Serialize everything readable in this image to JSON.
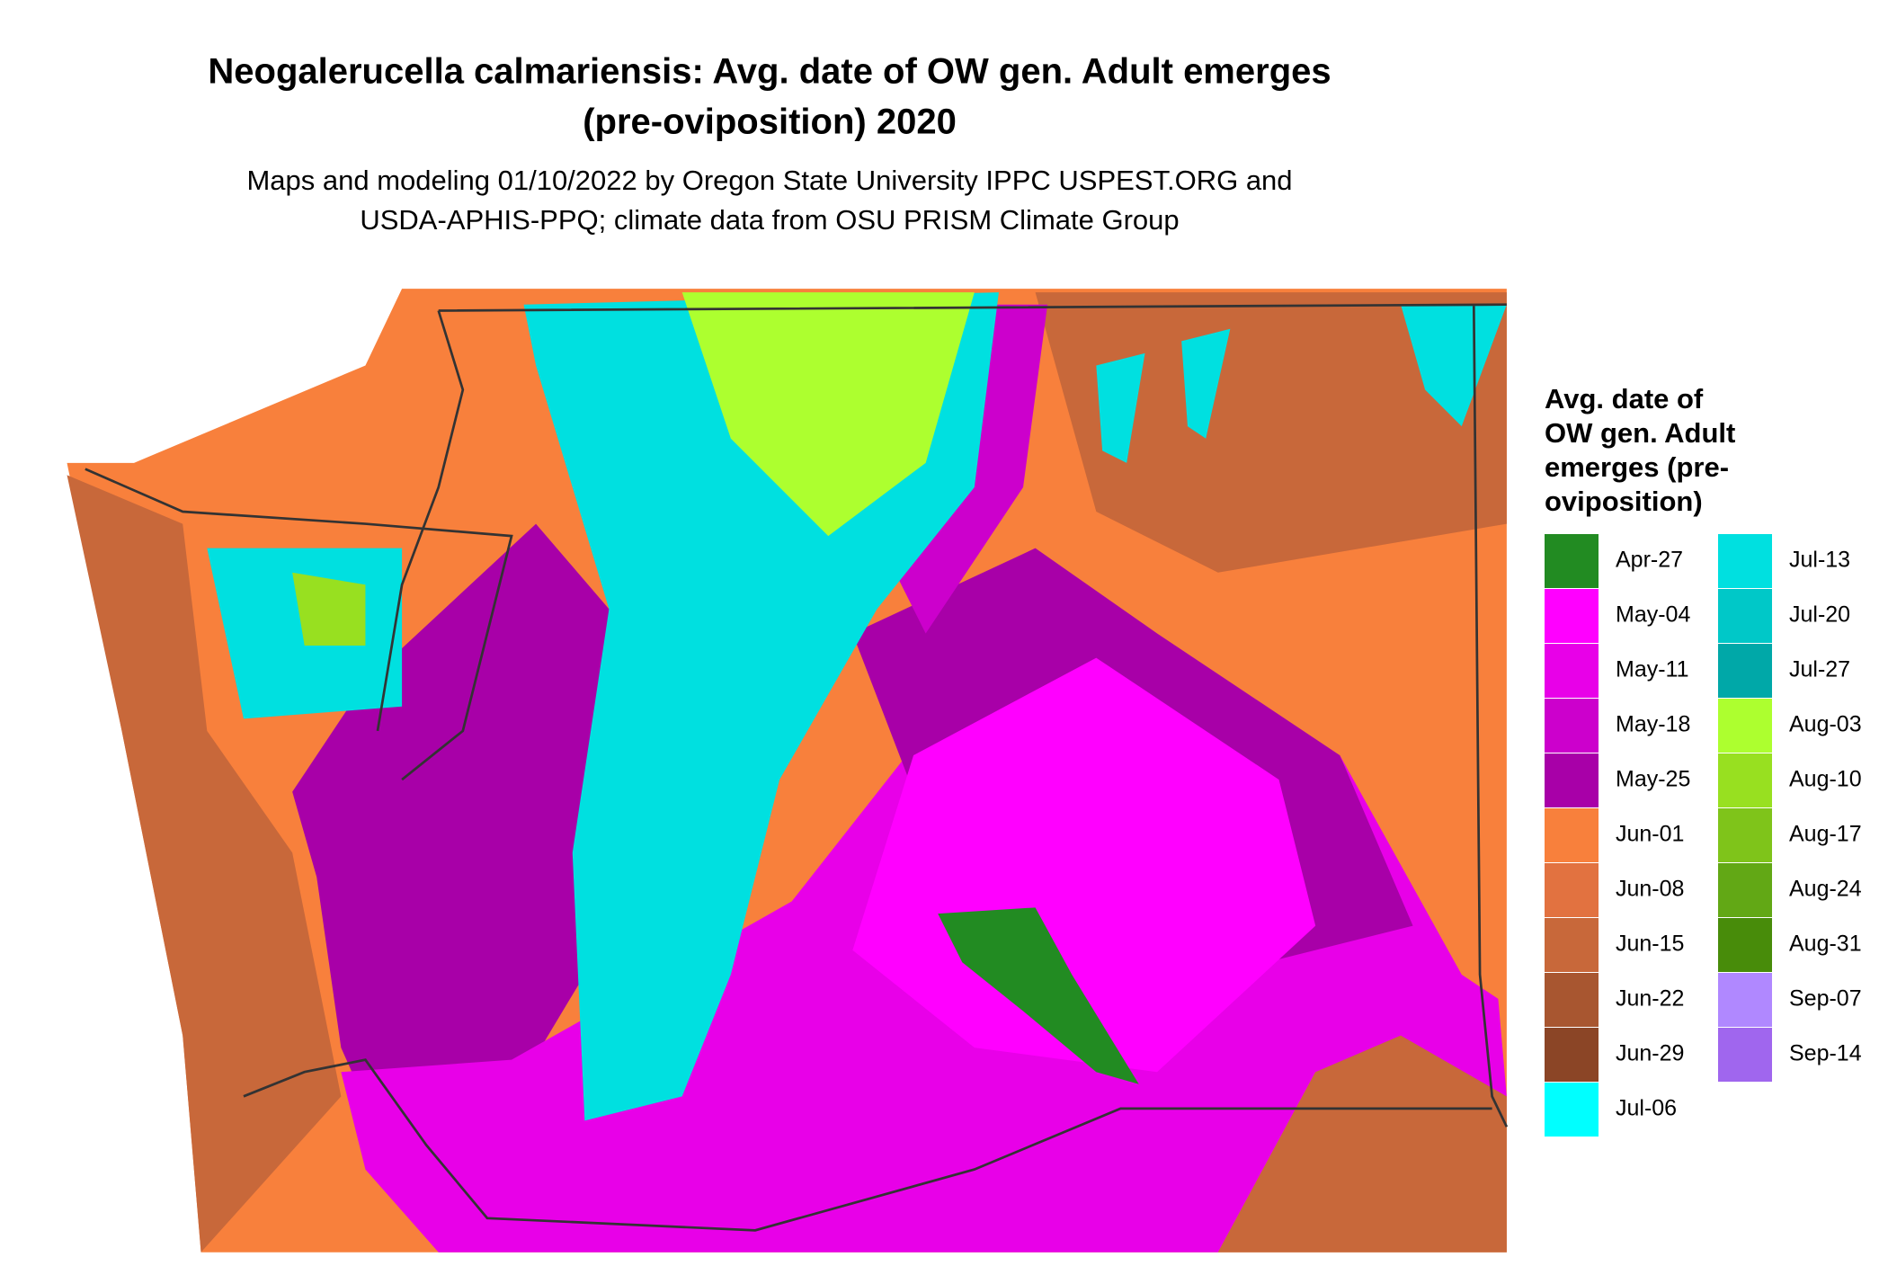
{
  "header": {
    "title_lines": [
      "Neogalerucella calmariensis: Avg. date of OW gen. Adult emerges",
      "(pre-oviposition) 2020"
    ],
    "subtitle_lines": [
      "Maps and modeling 01/10/2022 by Oregon State University IPPC USPEST.ORG and",
      "USDA-APHIS-PPQ; climate data from OSU PRISM Climate Group"
    ]
  },
  "legend": {
    "title_lines": [
      "Avg. date of",
      "OW gen. Adult",
      "emerges (pre-",
      "oviposition)"
    ],
    "items": [
      {
        "label": "Apr-27",
        "color": "#228b22"
      },
      {
        "label": "May-04",
        "color": "#ff00ff"
      },
      {
        "label": "May-11",
        "color": "#e800e8"
      },
      {
        "label": "May-18",
        "color": "#cc00cc"
      },
      {
        "label": "May-25",
        "color": "#a800a8"
      },
      {
        "label": "Jun-01",
        "color": "#f8803c"
      },
      {
        "label": "Jun-08",
        "color": "#e27240"
      },
      {
        "label": "Jun-15",
        "color": "#c8683a"
      },
      {
        "label": "Jun-22",
        "color": "#a85630"
      },
      {
        "label": "Jun-29",
        "color": "#8b4526"
      },
      {
        "label": "Jul-06",
        "color": "#00ffff"
      },
      {
        "label": "Jul-13",
        "color": "#00e0e0"
      },
      {
        "label": "Jul-20",
        "color": "#00c8c8"
      },
      {
        "label": "Jul-27",
        "color": "#00a8a8"
      },
      {
        "label": "Aug-03",
        "color": "#adff2f"
      },
      {
        "label": "Aug-10",
        "color": "#98e020"
      },
      {
        "label": "Aug-17",
        "color": "#7fc41a"
      },
      {
        "label": "Aug-24",
        "color": "#62a815"
      },
      {
        "label": "Aug-31",
        "color": "#488c0a"
      },
      {
        "label": "Sep-07",
        "color": "#b088ff"
      },
      {
        "label": "Sep-14",
        "color": "#a066ee"
      }
    ]
  }
}
